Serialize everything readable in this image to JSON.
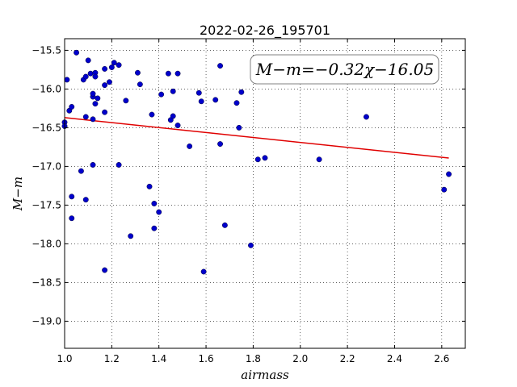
{
  "chart_data": {
    "type": "scatter",
    "title": "2022-02-26_195701",
    "xlabel": "airmass",
    "ylabel": "M−m",
    "xlim": [
      1.0,
      2.7
    ],
    "ylim": [
      -19.35,
      -15.35
    ],
    "y_inverted": true,
    "grid": true,
    "x_ticks": [
      1.0,
      1.2,
      1.4,
      1.6,
      1.8,
      2.0,
      2.2,
      2.4,
      2.6
    ],
    "x_tick_labels": [
      "1.0",
      "1.2",
      "1.4",
      "1.6",
      "1.8",
      "2.0",
      "2.2",
      "2.4",
      "2.6"
    ],
    "y_ticks": [
      -15.5,
      -16.0,
      -16.5,
      -17.0,
      -17.5,
      -18.0,
      -18.5,
      -19.0
    ],
    "y_tick_labels": [
      "−15.5",
      "−16.0",
      "−16.5",
      "−17.0",
      "−17.5",
      "−18.0",
      "−18.5",
      "−19.0"
    ],
    "annotation": "M−m=−0.32χ−16.05",
    "fit": {
      "slope": -0.32,
      "intercept": -16.05,
      "x_range": [
        1.0,
        2.63
      ],
      "color": "#e00000"
    },
    "point_color": "#0000cc",
    "points": [
      {
        "x": 1.0,
        "y": -16.43
      },
      {
        "x": 1.0,
        "y": -16.48
      },
      {
        "x": 1.01,
        "y": -15.88
      },
      {
        "x": 1.02,
        "y": -16.28
      },
      {
        "x": 1.03,
        "y": -16.23
      },
      {
        "x": 1.03,
        "y": -17.39
      },
      {
        "x": 1.03,
        "y": -17.67
      },
      {
        "x": 1.05,
        "y": -15.53
      },
      {
        "x": 1.07,
        "y": -17.06
      },
      {
        "x": 1.08,
        "y": -15.88
      },
      {
        "x": 1.09,
        "y": -15.84
      },
      {
        "x": 1.09,
        "y": -16.36
      },
      {
        "x": 1.09,
        "y": -17.43
      },
      {
        "x": 1.1,
        "y": -15.63
      },
      {
        "x": 1.11,
        "y": -15.8
      },
      {
        "x": 1.12,
        "y": -16.39
      },
      {
        "x": 1.12,
        "y": -16.98
      },
      {
        "x": 1.12,
        "y": -16.1
      },
      {
        "x": 1.12,
        "y": -16.06
      },
      {
        "x": 1.13,
        "y": -15.79
      },
      {
        "x": 1.13,
        "y": -15.84
      },
      {
        "x": 1.13,
        "y": -16.19
      },
      {
        "x": 1.14,
        "y": -16.12
      },
      {
        "x": 1.17,
        "y": -15.74
      },
      {
        "x": 1.17,
        "y": -15.95
      },
      {
        "x": 1.17,
        "y": -16.3
      },
      {
        "x": 1.17,
        "y": -18.34
      },
      {
        "x": 1.19,
        "y": -15.91
      },
      {
        "x": 1.2,
        "y": -15.72
      },
      {
        "x": 1.21,
        "y": -15.66
      },
      {
        "x": 1.23,
        "y": -15.69
      },
      {
        "x": 1.23,
        "y": -16.98
      },
      {
        "x": 1.26,
        "y": -16.15
      },
      {
        "x": 1.28,
        "y": -17.9
      },
      {
        "x": 1.31,
        "y": -15.79
      },
      {
        "x": 1.32,
        "y": -15.94
      },
      {
        "x": 1.36,
        "y": -17.26
      },
      {
        "x": 1.37,
        "y": -16.33
      },
      {
        "x": 1.38,
        "y": -17.48
      },
      {
        "x": 1.38,
        "y": -17.8
      },
      {
        "x": 1.4,
        "y": -17.59
      },
      {
        "x": 1.41,
        "y": -16.07
      },
      {
        "x": 1.44,
        "y": -15.8
      },
      {
        "x": 1.45,
        "y": -16.4
      },
      {
        "x": 1.46,
        "y": -16.03
      },
      {
        "x": 1.46,
        "y": -16.35
      },
      {
        "x": 1.48,
        "y": -16.47
      },
      {
        "x": 1.48,
        "y": -15.8
      },
      {
        "x": 1.53,
        "y": -16.74
      },
      {
        "x": 1.57,
        "y": -16.05
      },
      {
        "x": 1.58,
        "y": -16.16
      },
      {
        "x": 1.59,
        "y": -18.36
      },
      {
        "x": 1.64,
        "y": -16.14
      },
      {
        "x": 1.66,
        "y": -15.7
      },
      {
        "x": 1.66,
        "y": -16.71
      },
      {
        "x": 1.68,
        "y": -17.76
      },
      {
        "x": 1.73,
        "y": -16.18
      },
      {
        "x": 1.74,
        "y": -16.5
      },
      {
        "x": 1.75,
        "y": -16.04
      },
      {
        "x": 1.79,
        "y": -18.02
      },
      {
        "x": 1.82,
        "y": -16.91
      },
      {
        "x": 1.85,
        "y": -16.89
      },
      {
        "x": 2.08,
        "y": -16.91
      },
      {
        "x": 2.28,
        "y": -16.36
      },
      {
        "x": 2.61,
        "y": -17.3
      },
      {
        "x": 2.63,
        "y": -17.1
      }
    ]
  }
}
